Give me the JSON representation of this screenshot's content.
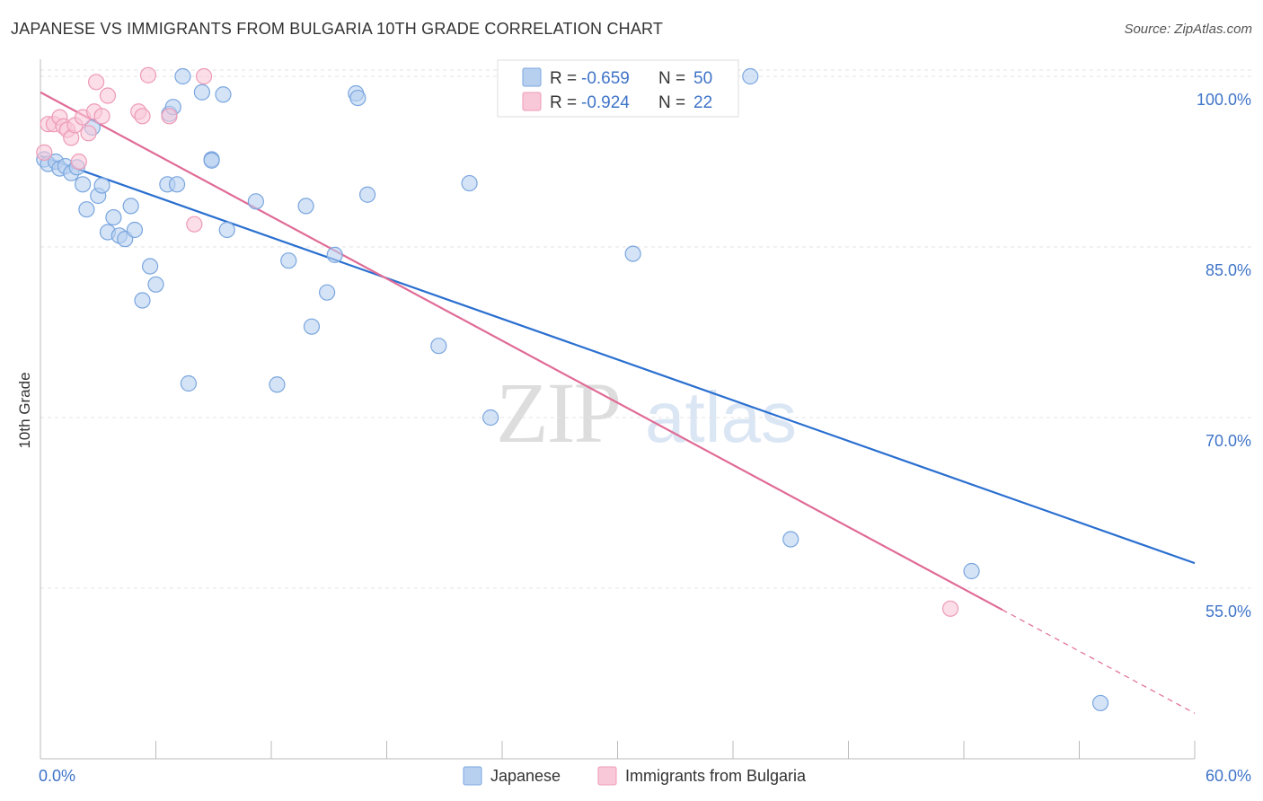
{
  "title": "JAPANESE VS IMMIGRANTS FROM BULGARIA 10TH GRADE CORRELATION CHART",
  "source": "Source: ZipAtlas.com",
  "watermark": {
    "zip": "ZIP",
    "atlas": "atlas"
  },
  "colors": {
    "japanese_fill": "#b8d0f0",
    "japanese_stroke": "#7aa6df",
    "japanese_line": "#2a6fd0",
    "bulgaria_fill": "#f9c8d8",
    "bulgaria_stroke": "#ee9ab6",
    "bulgaria_line": "#e06b96",
    "axis_label": "#3f74c8",
    "grid": "#e3e3e3"
  },
  "legend_box": {
    "rows": [
      {
        "r_label": "R = ",
        "r_value": "-0.659",
        "n_label": "N = ",
        "n_value": "50"
      },
      {
        "r_label": "R = ",
        "r_value": "-0.924",
        "n_label": "N = ",
        "n_value": "22"
      }
    ]
  },
  "chart_data": {
    "type": "scatter",
    "title": "JAPANESE VS IMMIGRANTS FROM BULGARIA 10TH GRADE CORRELATION CHART",
    "xlabel": "",
    "ylabel": "10th Grade",
    "xlim": [
      0,
      60
    ],
    "ylim": [
      40,
      101.5
    ],
    "x_tick_labels": [
      "0.0%",
      "60.0%"
    ],
    "y_ticks": [
      55,
      70,
      85,
      100
    ],
    "y_tick_labels": [
      "55.0%",
      "70.0%",
      "85.0%",
      "100.0%"
    ],
    "grid": true,
    "legend_position": "bottom",
    "series": [
      {
        "name": "Japanese",
        "points": [
          [
            0.2,
            92.7
          ],
          [
            0.4,
            92.3
          ],
          [
            0.8,
            92.5
          ],
          [
            1.0,
            91.9
          ],
          [
            1.3,
            92.1
          ],
          [
            1.6,
            91.5
          ],
          [
            1.9,
            92.0
          ],
          [
            2.2,
            90.5
          ],
          [
            2.4,
            88.3
          ],
          [
            2.7,
            95.5
          ],
          [
            3.0,
            89.5
          ],
          [
            3.2,
            90.4
          ],
          [
            3.5,
            86.3
          ],
          [
            3.8,
            87.6
          ],
          [
            4.1,
            86.0
          ],
          [
            4.4,
            85.7
          ],
          [
            4.7,
            88.6
          ],
          [
            4.9,
            86.5
          ],
          [
            5.3,
            80.3
          ],
          [
            5.7,
            83.3
          ],
          [
            6.0,
            81.7
          ],
          [
            6.7,
            96.7
          ],
          [
            6.6,
            90.5
          ],
          [
            7.1,
            90.5
          ],
          [
            6.9,
            97.3
          ],
          [
            7.4,
            100.0
          ],
          [
            7.7,
            73.0
          ],
          [
            8.4,
            98.6
          ],
          [
            9.5,
            98.4
          ],
          [
            9.7,
            86.5
          ],
          [
            8.9,
            92.7
          ],
          [
            8.9,
            92.6
          ],
          [
            11.2,
            89.0
          ],
          [
            12.3,
            72.9
          ],
          [
            12.9,
            83.8
          ],
          [
            13.8,
            88.6
          ],
          [
            14.1,
            78.0
          ],
          [
            14.9,
            81.0
          ],
          [
            15.3,
            84.3
          ],
          [
            16.4,
            98.5
          ],
          [
            16.5,
            98.1
          ],
          [
            17.0,
            89.6
          ],
          [
            20.7,
            76.3
          ],
          [
            22.3,
            90.6
          ],
          [
            23.4,
            70.0
          ],
          [
            30.8,
            84.4
          ],
          [
            36.9,
            100.0
          ],
          [
            39.0,
            59.3
          ],
          [
            48.4,
            56.5
          ],
          [
            55.1,
            44.9
          ]
        ],
        "trend": {
          "x0": 0.0,
          "y0": 93.0,
          "x1": 60.0,
          "y1": 57.2
        }
      },
      {
        "name": "Immigrants from Bulgaria",
        "points": [
          [
            0.2,
            93.3
          ],
          [
            0.4,
            95.8
          ],
          [
            0.7,
            95.8
          ],
          [
            1.0,
            96.4
          ],
          [
            1.2,
            95.6
          ],
          [
            1.4,
            95.3
          ],
          [
            1.6,
            94.6
          ],
          [
            1.8,
            95.7
          ],
          [
            2.0,
            92.5
          ],
          [
            2.2,
            96.4
          ],
          [
            2.5,
            95.0
          ],
          [
            2.8,
            96.9
          ],
          [
            2.9,
            99.5
          ],
          [
            3.2,
            96.5
          ],
          [
            3.5,
            98.3
          ],
          [
            5.1,
            96.9
          ],
          [
            5.3,
            96.5
          ],
          [
            5.6,
            100.1
          ],
          [
            6.7,
            96.5
          ],
          [
            8.0,
            87.0
          ],
          [
            8.5,
            100.0
          ],
          [
            47.3,
            53.2
          ]
        ],
        "trend": {
          "x0": 0.0,
          "y0": 98.6,
          "x1": 60.0,
          "y1": 44.0,
          "solid_until_x": 50.0
        }
      }
    ]
  }
}
